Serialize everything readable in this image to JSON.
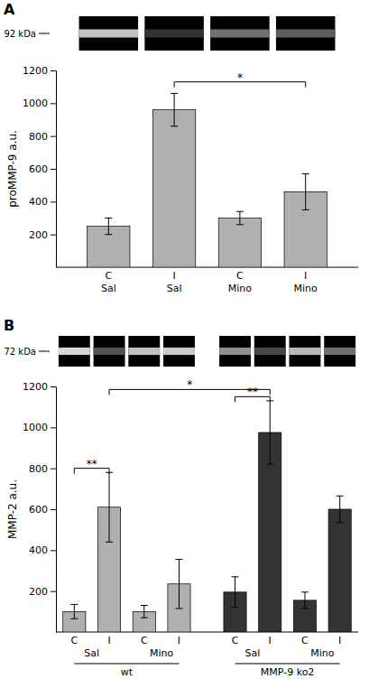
{
  "chart_data": [
    {
      "type": "bar",
      "panel_label": "A",
      "categories": [
        "C",
        "I",
        "C",
        "I"
      ],
      "sublabels": [
        "Sal",
        "Sal",
        "Mino",
        "Mino"
      ],
      "values": [
        250,
        960,
        300,
        460
      ],
      "errors": [
        50,
        100,
        40,
        110
      ],
      "color": "#b0b0b0",
      "ylabel": "proMMP-9 a.u.",
      "ylim": [
        0,
        1200
      ],
      "yticks": [
        200,
        400,
        600,
        800,
        1000,
        1200
      ],
      "annotations": [
        {
          "text": "*",
          "from": 1,
          "to": 3,
          "y": 1130
        }
      ],
      "gel_label": "92 kDa",
      "lane_brightness": [
        0.3,
        1.0,
        0.7,
        0.8
      ]
    },
    {
      "type": "bar",
      "panel_label": "B",
      "categories": [
        "C",
        "I",
        "C",
        "I"
      ],
      "subgroups": [
        "Sal",
        "Mino"
      ],
      "series": [
        {
          "name": "wt",
          "color": "#b0b0b0",
          "values": [
            100,
            610,
            100,
            235
          ],
          "errors": [
            35,
            170,
            30,
            120
          ],
          "lane_brightness": [
            0.2,
            0.85,
            0.3,
            0.25
          ]
        },
        {
          "name": "MMP-9 ko2",
          "color": "#333333",
          "values": [
            195,
            975,
            155,
            600
          ],
          "errors": [
            75,
            155,
            40,
            65
          ],
          "lane_brightness": [
            0.55,
            0.9,
            0.35,
            0.7
          ]
        }
      ],
      "ylabel": "MMP-2 a.u.",
      "ylim": [
        0,
        1200
      ],
      "yticks": [
        200,
        400,
        600,
        800,
        1000,
        1200
      ],
      "annotations": [
        {
          "text": "**",
          "from": [
            0,
            0
          ],
          "to": [
            0,
            1
          ],
          "y": 800
        },
        {
          "text": "**",
          "from": [
            1,
            0
          ],
          "to": [
            1,
            1
          ],
          "y": 1150
        },
        {
          "text": "*",
          "from": [
            0,
            1
          ],
          "to": [
            1,
            1
          ],
          "y": 1185
        }
      ],
      "gel_label": "72 kDa"
    }
  ]
}
